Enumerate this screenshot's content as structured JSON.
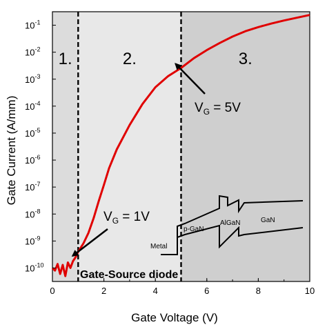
{
  "chart_data": {
    "type": "line",
    "xlabel": "Gate Voltage (V)",
    "ylabel": "Gate Current (A/mm)",
    "xlim": [
      0,
      10
    ],
    "ylim_log10": [
      -10.5,
      -0.5
    ],
    "y_scale": "log",
    "x_ticks": [
      "0",
      "2",
      "4",
      "6",
      "8",
      "10"
    ],
    "y_ticks": [
      {
        "base": "10",
        "exp": "-1",
        "value": 0.1
      },
      {
        "base": "10",
        "exp": "-2",
        "value": 0.01
      },
      {
        "base": "10",
        "exp": "-3",
        "value": 0.001
      },
      {
        "base": "10",
        "exp": "-4",
        "value": 0.0001
      },
      {
        "base": "10",
        "exp": "-5",
        "value": 1e-05
      },
      {
        "base": "10",
        "exp": "-6",
        "value": 1e-06
      },
      {
        "base": "10",
        "exp": "-7",
        "value": 1e-07
      },
      {
        "base": "10",
        "exp": "-8",
        "value": 1e-08
      },
      {
        "base": "10",
        "exp": "-9",
        "value": 1e-09
      },
      {
        "base": "10",
        "exp": "-10",
        "value": 1e-10
      }
    ],
    "series": [
      {
        "color": "#e00000",
        "x": [
          0.0,
          0.1,
          0.2,
          0.3,
          0.4,
          0.5,
          0.6,
          0.7,
          0.8,
          0.9,
          1.0,
          1.2,
          1.4,
          1.6,
          1.8,
          2.0,
          2.2,
          2.5,
          3.0,
          3.5,
          4.0,
          4.5,
          5.0,
          5.5,
          6.0,
          6.5,
          7.0,
          7.5,
          8.0,
          8.5,
          9.0,
          9.5,
          10.0
        ],
        "y": [
          1e-10,
          8e-11,
          1.4e-10,
          6e-11,
          1.3e-10,
          5e-11,
          1.6e-10,
          1e-10,
          1.8e-10,
          2.5e-10,
          4e-10,
          8e-10,
          2e-09,
          7e-09,
          3e-08,
          1.2e-07,
          5e-07,
          2.5e-06,
          2e-05,
          0.00012,
          0.0005,
          0.0013,
          0.0026,
          0.006,
          0.012,
          0.022,
          0.038,
          0.06,
          0.085,
          0.115,
          0.15,
          0.19,
          0.24
        ]
      }
    ],
    "regions": [
      {
        "label": "1.",
        "x_from": 0,
        "x_to": 1,
        "fill": "#dcdcdc"
      },
      {
        "label": "2.",
        "x_from": 1,
        "x_to": 5,
        "fill": "#e8e8e8"
      },
      {
        "label": "3.",
        "x_from": 5,
        "x_to": 10,
        "fill": "#cfcfcf"
      }
    ],
    "vlines": [
      1,
      5
    ],
    "annotations": [
      {
        "text_main": "V",
        "text_sub": "G",
        "text_rest": " = 5V",
        "target_x": 5,
        "target_y": 0.0026
      },
      {
        "text_main": "V",
        "text_sub": "G",
        "text_rest": " = 1V",
        "target_x": 1,
        "target_y": 4e-10
      }
    ],
    "caption": "Gate-Source diode",
    "band_diagram": {
      "labels": [
        "Metal",
        "p-GaN",
        "AlGaN",
        "GaN"
      ]
    }
  }
}
